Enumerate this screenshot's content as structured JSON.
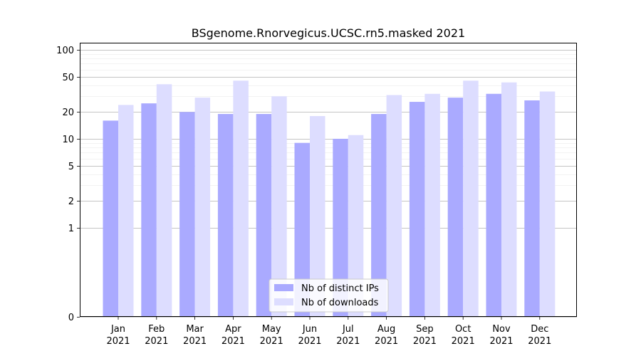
{
  "chart_data": {
    "type": "bar",
    "title": "BSgenome.Rnorvegicus.UCSC.rn5.masked 2021",
    "xlabel": "",
    "ylabel": "",
    "y_scale": "symlog",
    "ylim": [
      0,
      120
    ],
    "y_ticks": [
      0,
      1,
      2,
      5,
      10,
      20,
      50,
      100
    ],
    "y_tick_labels": [
      "0",
      "1",
      "2",
      "5",
      "10",
      "20",
      "50",
      "100"
    ],
    "grid": true,
    "legend_position": "bottom-center",
    "categories": [
      "Jan",
      "Feb",
      "Mar",
      "Apr",
      "May",
      "Jun",
      "Jul",
      "Aug",
      "Sep",
      "Oct",
      "Nov",
      "Dec"
    ],
    "category_sublabels": [
      "2021",
      "2021",
      "2021",
      "2021",
      "2021",
      "2021",
      "2021",
      "2021",
      "2021",
      "2021",
      "2021",
      "2021"
    ],
    "series": [
      {
        "name": "Nb of distinct IPs",
        "color": "#aaaaff",
        "values": [
          16,
          25,
          20,
          19,
          19,
          9,
          10,
          19,
          26,
          29,
          32,
          27
        ]
      },
      {
        "name": "Nb of downloads",
        "color": "#ddddff",
        "values": [
          24,
          41,
          29,
          45,
          30,
          18,
          11,
          31,
          32,
          45,
          43,
          34
        ]
      }
    ]
  }
}
